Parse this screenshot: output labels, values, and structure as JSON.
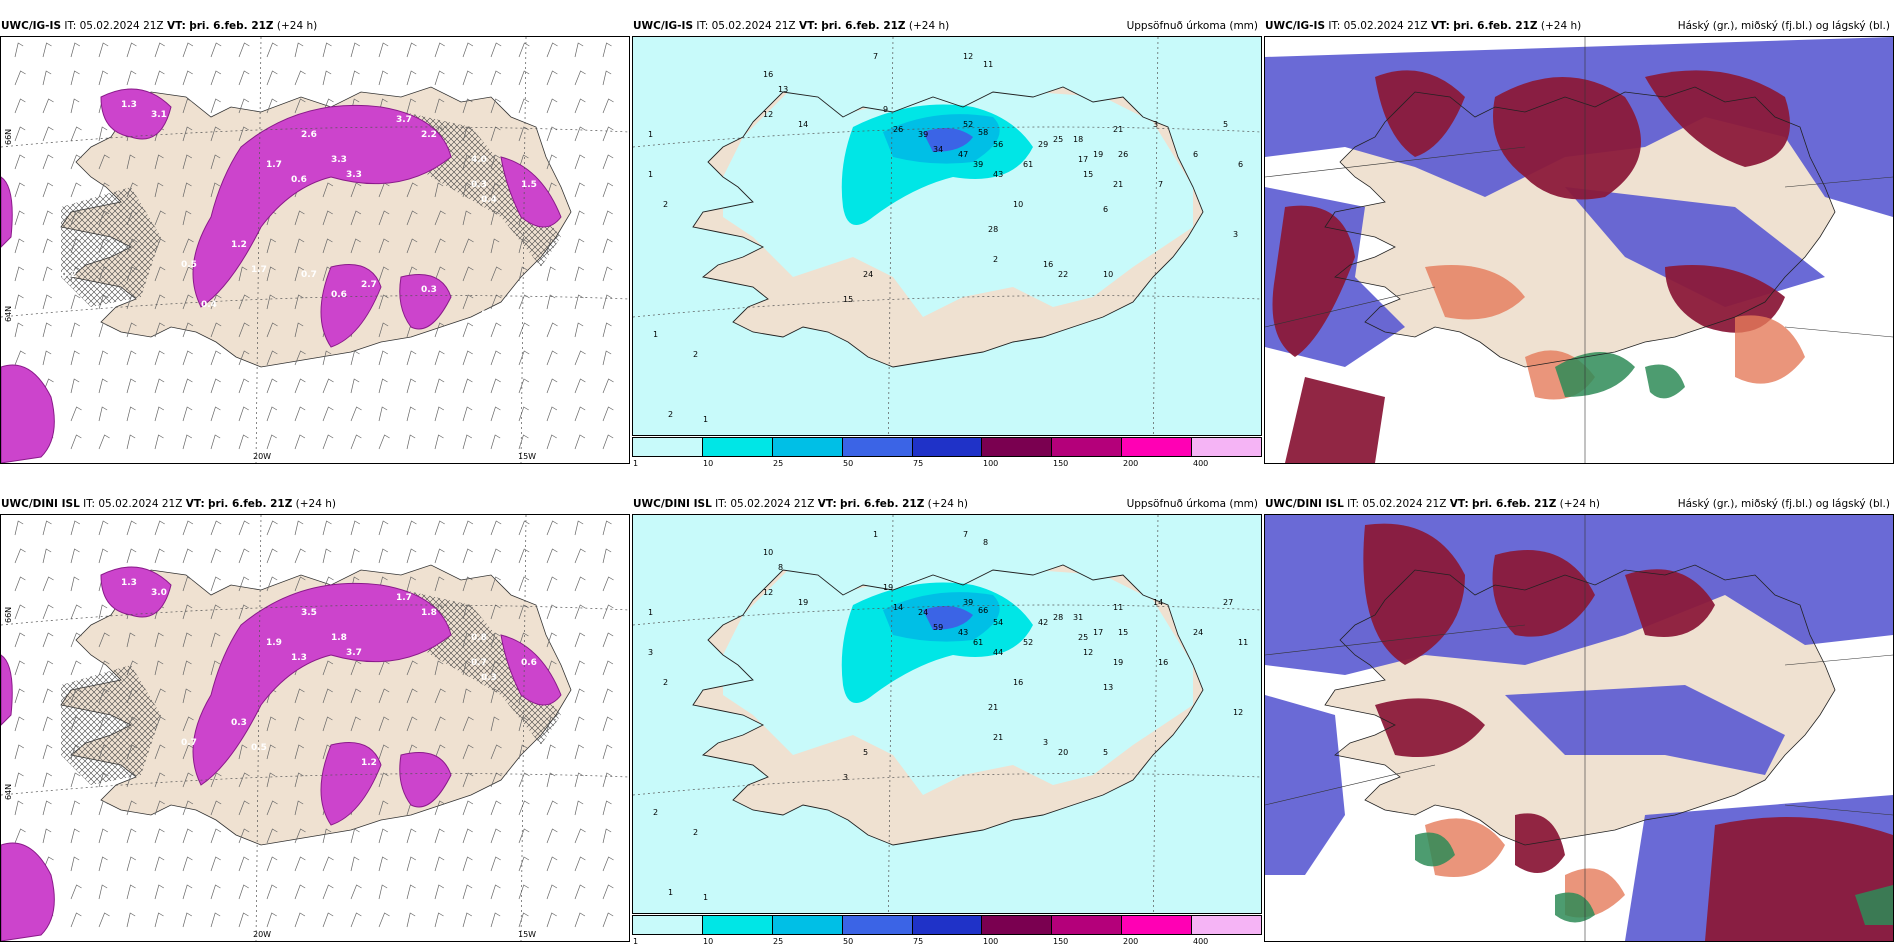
{
  "top_row": {
    "model": "UWC/IG-IS",
    "it_label": "IT:",
    "it_value": "05.02.2024 21Z",
    "vt_label": "VT:",
    "vt_value": "þri. 6.feb. 21Z",
    "lead": "(+24 h)"
  },
  "bottom_row": {
    "model": "UWC/DINI ISL",
    "it_label": "IT:",
    "it_value": "05.02.2024 21Z",
    "vt_label": "VT:",
    "vt_value": "þri. 6.feb. 21Z",
    "lead": "(+24 h)"
  },
  "precip_title": "Uppsöfnuð úrkoma (mm)",
  "cloud_title": "Háský (gr.), miðský (fj.bl.) og lágský (bl.)",
  "axis_labels": {
    "lon_left": "20W",
    "lon_right": "15W",
    "lat_top": "66N",
    "lat_bottom": "64N"
  },
  "colorbar": {
    "ticks": [
      "1",
      "10",
      "25",
      "50",
      "75",
      "100",
      "150",
      "200",
      "400"
    ],
    "colors": [
      "#c8fafa",
      "#00e6e6",
      "#00bfe6",
      "#3b64e6",
      "#1f32c8",
      "#7a0050",
      "#b4007a",
      "#ff00b4",
      "#f5b4f5"
    ]
  },
  "precip_top_values": [
    "7",
    "12",
    "11",
    "16",
    "13",
    "12",
    "14",
    "9",
    "26",
    "39",
    "34",
    "52",
    "58",
    "56",
    "47",
    "39",
    "43",
    "61",
    "29",
    "25",
    "18",
    "17",
    "15",
    "19",
    "21",
    "26",
    "21",
    "10",
    "6",
    "7",
    "3",
    "6",
    "5",
    "6",
    "3",
    "2",
    "22",
    "28",
    "16",
    "10",
    "24",
    "15",
    "1",
    "2",
    "1",
    "1",
    "2",
    "2",
    "1"
  ],
  "precip_bottom_values": [
    "1",
    "7",
    "8",
    "10",
    "8",
    "12",
    "19",
    "19",
    "14",
    "24",
    "59",
    "39",
    "66",
    "54",
    "43",
    "61",
    "44",
    "52",
    "42",
    "28",
    "31",
    "25",
    "12",
    "17",
    "11",
    "15",
    "19",
    "16",
    "13",
    "16",
    "14",
    "24",
    "27",
    "11",
    "12",
    "21",
    "20",
    "21",
    "3",
    "5",
    "5",
    "3",
    "1",
    "2",
    "3",
    "2",
    "2",
    "1",
    "1"
  ],
  "wind_top_values": [
    "1.3",
    "3.1",
    "3.7",
    "2.2",
    "1.7",
    "2.6",
    "3.3",
    "0.6",
    "3.3",
    "4.0",
    "0.3",
    "0.4",
    "1.5",
    "0.5",
    "1.2",
    "2.7",
    "1.7",
    "0.4",
    "0.6",
    "0.7",
    "1.2",
    "0.3",
    "0.2"
  ],
  "wind_bottom_values": [
    "1.3",
    "3.0",
    "1.7",
    "1.8",
    "1.9",
    "3.5",
    "1.8",
    "1.3",
    "3.7",
    "0.8",
    "0.7",
    "0.3",
    "0.6",
    "0.7",
    "0.3",
    "1.2",
    "0.5"
  ]
}
